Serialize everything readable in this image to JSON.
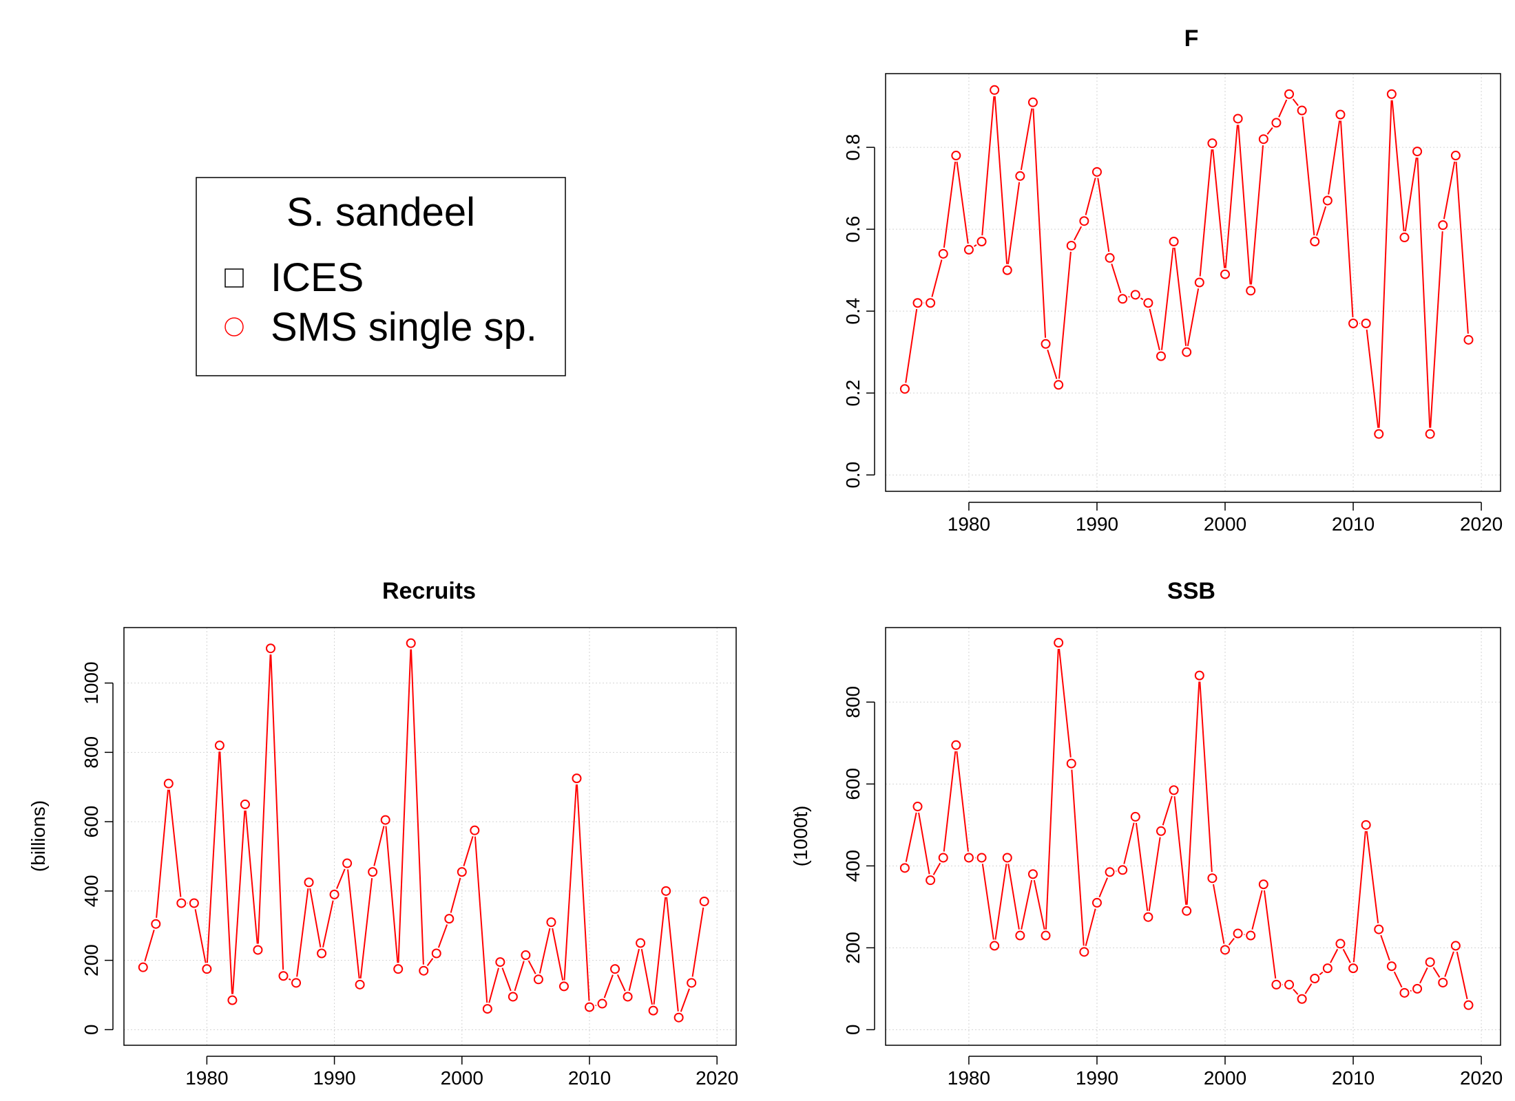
{
  "legend": {
    "title": "S. sandeel",
    "items": [
      {
        "label": "ICES",
        "symbol": "square",
        "color": "#000000"
      },
      {
        "label": "SMS single sp.",
        "symbol": "circle",
        "color": "#ff0000"
      }
    ]
  },
  "colors": {
    "series": "#ff0000",
    "grid": "#d3d3d3",
    "axis": "#000000"
  },
  "chart_data": [
    {
      "id": "f",
      "type": "line",
      "title": "F",
      "xlabel": "",
      "ylabel": "",
      "xlim": [
        1973.5,
        2021.5
      ],
      "ylim": [
        -0.04,
        0.98
      ],
      "xticks": [
        1980,
        1990,
        2000,
        2010,
        2020
      ],
      "yticks": [
        "0.0",
        "0.2",
        "0.4",
        "0.6",
        "0.8"
      ],
      "grid": true,
      "x": [
        1975,
        1976,
        1977,
        1978,
        1979,
        1980,
        1981,
        1982,
        1983,
        1984,
        1985,
        1986,
        1987,
        1988,
        1989,
        1990,
        1991,
        1992,
        1993,
        1994,
        1995,
        1996,
        1997,
        1998,
        1999,
        2000,
        2001,
        2002,
        2003,
        2004,
        2005,
        2006,
        2007,
        2008,
        2009,
        2010,
        2011,
        2012,
        2013,
        2014,
        2015,
        2016,
        2017,
        2018,
        2019
      ],
      "series": [
        {
          "name": "SMS single sp.",
          "values": [
            0.21,
            0.42,
            0.42,
            0.54,
            0.78,
            0.55,
            0.57,
            0.94,
            0.5,
            0.73,
            0.91,
            0.32,
            0.22,
            0.56,
            0.62,
            0.74,
            0.53,
            0.43,
            0.44,
            0.42,
            0.29,
            0.57,
            0.3,
            0.47,
            0.81,
            0.49,
            0.87,
            0.45,
            0.82,
            0.86,
            0.93,
            0.89,
            0.57,
            0.67,
            0.88,
            0.37,
            0.37,
            0.1,
            0.93,
            0.58,
            0.79,
            0.1,
            0.61,
            0.78,
            0.33
          ]
        }
      ]
    },
    {
      "id": "recruits",
      "type": "line",
      "title": "Recruits",
      "xlabel": "",
      "ylabel": "(billions)",
      "xlim": [
        1973.5,
        2021.5
      ],
      "ylim": [
        -45,
        1160
      ],
      "xticks": [
        1980,
        1990,
        2000,
        2010,
        2020
      ],
      "yticks": [
        "0",
        "200",
        "400",
        "600",
        "800",
        "1000"
      ],
      "grid": true,
      "x": [
        1975,
        1976,
        1977,
        1978,
        1979,
        1980,
        1981,
        1982,
        1983,
        1984,
        1985,
        1986,
        1987,
        1988,
        1989,
        1990,
        1991,
        1992,
        1993,
        1994,
        1995,
        1996,
        1997,
        1998,
        1999,
        2000,
        2001,
        2002,
        2003,
        2004,
        2005,
        2006,
        2007,
        2008,
        2009,
        2010,
        2011,
        2012,
        2013,
        2014,
        2015,
        2016,
        2017,
        2018,
        2019
      ],
      "series": [
        {
          "name": "SMS single sp.",
          "values": [
            180,
            305,
            710,
            365,
            365,
            175,
            820,
            85,
            650,
            230,
            1100,
            155,
            135,
            425,
            220,
            390,
            480,
            130,
            455,
            605,
            175,
            1115,
            170,
            220,
            320,
            455,
            575,
            60,
            195,
            95,
            215,
            145,
            310,
            125,
            725,
            65,
            75,
            175,
            95,
            250,
            55,
            400,
            35,
            135,
            370
          ]
        }
      ]
    },
    {
      "id": "ssb",
      "type": "line",
      "title": "SSB",
      "xlabel": "",
      "ylabel": "(1000t)",
      "xlim": [
        1973.5,
        2021.5
      ],
      "ylim": [
        -38,
        982
      ],
      "xticks": [
        1980,
        1990,
        2000,
        2010,
        2020
      ],
      "yticks": [
        "0",
        "200",
        "400",
        "600",
        "800"
      ],
      "grid": true,
      "x": [
        1975,
        1976,
        1977,
        1978,
        1979,
        1980,
        1981,
        1982,
        1983,
        1984,
        1985,
        1986,
        1987,
        1988,
        1989,
        1990,
        1991,
        1992,
        1993,
        1994,
        1995,
        1996,
        1997,
        1998,
        1999,
        2000,
        2001,
        2002,
        2003,
        2004,
        2005,
        2006,
        2007,
        2008,
        2009,
        2010,
        2011,
        2012,
        2013,
        2014,
        2015,
        2016,
        2017,
        2018,
        2019
      ],
      "series": [
        {
          "name": "SMS single sp.",
          "values": [
            395,
            545,
            365,
            420,
            695,
            420,
            420,
            205,
            420,
            230,
            380,
            230,
            945,
            650,
            190,
            310,
            385,
            390,
            520,
            275,
            485,
            585,
            290,
            865,
            370,
            195,
            235,
            230,
            355,
            110,
            110,
            75,
            125,
            150,
            210,
            150,
            500,
            245,
            155,
            90,
            100,
            165,
            115,
            205,
            60
          ]
        }
      ]
    }
  ]
}
